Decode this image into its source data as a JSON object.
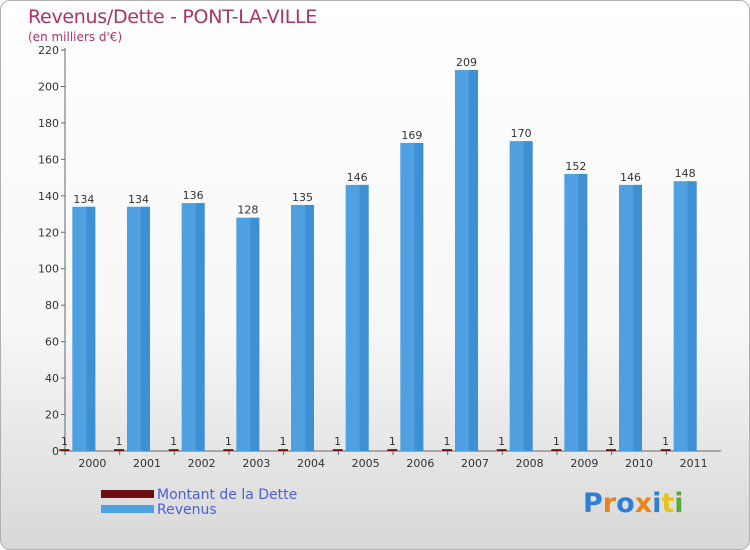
{
  "title": "Revenus/Dette - PONT-LA-VILLE",
  "subtitle": "(en milliers d'€)",
  "chart_data": {
    "type": "bar",
    "title": "Revenus/Dette - PONT-LA-VILLE",
    "ylabel": "(en milliers d'€)",
    "xlabel": "",
    "categories": [
      "2000",
      "2001",
      "2002",
      "2003",
      "2004",
      "2005",
      "2006",
      "2007",
      "2008",
      "2009",
      "2010",
      "2011"
    ],
    "series": [
      {
        "name": "Montant de la Dette",
        "color": "#6b0f12",
        "values": [
          1,
          1,
          1,
          1,
          1,
          1,
          1,
          1,
          1,
          1,
          1,
          1
        ]
      },
      {
        "name": "Revenus",
        "color": "#4ea0e0",
        "values": [
          134,
          134,
          136,
          128,
          135,
          146,
          169,
          209,
          170,
          152,
          146,
          148
        ]
      }
    ],
    "ylim": [
      0,
      220
    ],
    "yticks": [
      0,
      20,
      40,
      60,
      80,
      100,
      120,
      140,
      160,
      180,
      200,
      220
    ],
    "grid": false,
    "legend": "bottom-left"
  },
  "legend": {
    "items": [
      {
        "label": "Montant de la Dette",
        "color": "#6b0f12"
      },
      {
        "label": "Revenus",
        "color": "#4ea0e0"
      }
    ]
  },
  "logo": {
    "letters": [
      "P",
      "r",
      "o",
      "x",
      "i",
      "t",
      "i"
    ],
    "colors": [
      "#2e7fd4",
      "#e8841a",
      "#2e7fd4",
      "#e8841a",
      "#2e7fd4",
      "#e8c41a",
      "#5aa83a"
    ]
  }
}
